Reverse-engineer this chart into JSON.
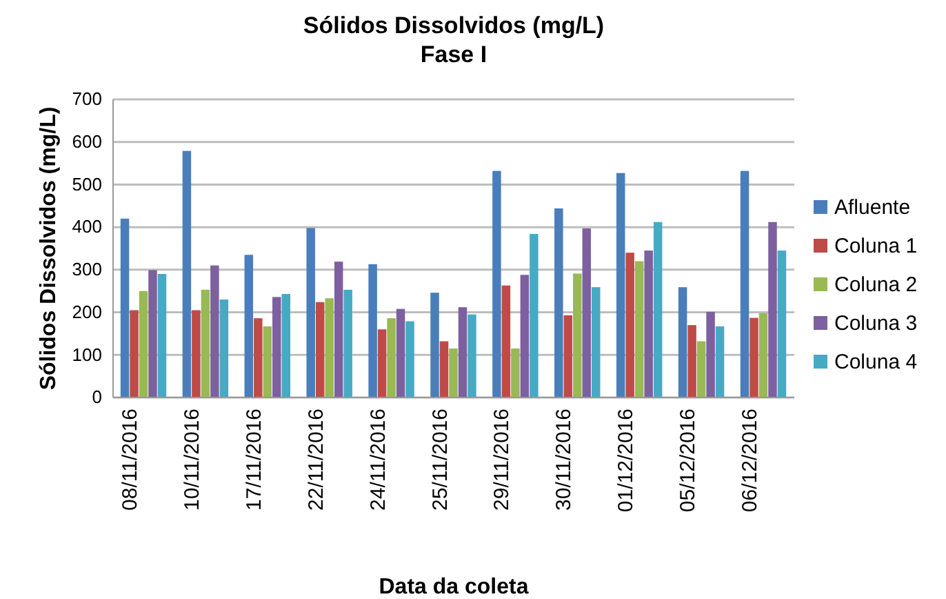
{
  "chart_data": {
    "type": "bar",
    "title": "Sólidos Dissolvidos (mg/L)",
    "subtitle": "Fase I",
    "xlabel": "Data da coleta",
    "ylabel": "Sólidos Dissolvidos (mg/L)",
    "categories": [
      "08/11/2016",
      "10/11/2016",
      "17/11/2016",
      "22/11/2016",
      "24/11/2016",
      "25/11/2016",
      "29/11/2016",
      "30/11/2016",
      "01/12/2016",
      "05/12/2016",
      "06/12/2016"
    ],
    "series": [
      {
        "name": "Afluente",
        "color": "#4a7ebb",
        "values": [
          420,
          579,
          335,
          398,
          313,
          246,
          532,
          444,
          527,
          259,
          532
        ]
      },
      {
        "name": "Coluna 1",
        "color": "#be4b48",
        "values": [
          205,
          205,
          186,
          224,
          160,
          132,
          263,
          193,
          340,
          170,
          187
        ]
      },
      {
        "name": "Coluna 2",
        "color": "#98b954",
        "values": [
          250,
          253,
          167,
          233,
          186,
          115,
          115,
          291,
          320,
          132,
          198
        ]
      },
      {
        "name": "Coluna 3",
        "color": "#7d60a0",
        "values": [
          299,
          310,
          236,
          319,
          208,
          212,
          288,
          397,
          345,
          201,
          412
        ]
      },
      {
        "name": "Coluna 4",
        "color": "#46aac5",
        "values": [
          290,
          230,
          243,
          253,
          179,
          195,
          384,
          259,
          412,
          167,
          345
        ]
      }
    ],
    "ylim": [
      0,
      700
    ],
    "yticks": [
      0,
      100,
      200,
      300,
      400,
      500,
      600,
      700
    ],
    "grid": "y",
    "legend": "right"
  }
}
